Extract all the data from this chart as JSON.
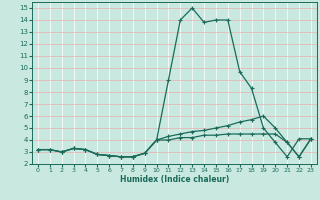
{
  "xlabel": "Humidex (Indice chaleur)",
  "bg_color": "#c8e8e0",
  "line_color": "#1a6b5a",
  "pink_grid": "#e8b0b0",
  "white_grid": "#ffffff",
  "xlim": [
    -0.5,
    23.5
  ],
  "ylim": [
    2,
    15.5
  ],
  "xticks": [
    0,
    1,
    2,
    3,
    4,
    5,
    6,
    7,
    8,
    9,
    10,
    11,
    12,
    13,
    14,
    15,
    16,
    17,
    18,
    19,
    20,
    21,
    22,
    23
  ],
  "yticks": [
    2,
    3,
    4,
    5,
    6,
    7,
    8,
    9,
    10,
    11,
    12,
    13,
    14,
    15
  ],
  "line1_x": [
    0,
    1,
    2,
    3,
    4,
    5,
    6,
    7,
    8,
    9,
    10,
    11,
    12,
    13,
    14,
    15,
    16,
    17,
    18,
    19,
    20,
    21,
    22,
    23
  ],
  "line1_y": [
    3.2,
    3.2,
    3.0,
    3.3,
    3.2,
    2.8,
    2.7,
    2.6,
    2.6,
    2.9,
    4.0,
    9.0,
    14.0,
    15.0,
    13.8,
    14.0,
    14.0,
    9.7,
    8.3,
    5.0,
    3.8,
    2.6,
    4.1,
    4.1
  ],
  "line2_x": [
    0,
    1,
    2,
    3,
    4,
    5,
    6,
    7,
    8,
    9,
    10,
    11,
    12,
    13,
    14,
    15,
    16,
    17,
    18,
    19,
    20,
    21,
    22,
    23
  ],
  "line2_y": [
    3.2,
    3.2,
    3.0,
    3.3,
    3.2,
    2.8,
    2.7,
    2.6,
    2.6,
    2.9,
    4.0,
    4.3,
    4.5,
    4.7,
    4.8,
    5.0,
    5.2,
    5.5,
    5.7,
    6.0,
    5.0,
    3.8,
    2.6,
    4.1
  ],
  "line3_x": [
    0,
    1,
    2,
    3,
    4,
    5,
    6,
    7,
    8,
    9,
    10,
    11,
    12,
    13,
    14,
    15,
    16,
    17,
    18,
    19,
    20,
    21,
    22,
    23
  ],
  "line3_y": [
    3.2,
    3.2,
    3.0,
    3.3,
    3.2,
    2.8,
    2.7,
    2.6,
    2.6,
    2.9,
    4.0,
    4.0,
    4.2,
    4.2,
    4.4,
    4.4,
    4.5,
    4.5,
    4.5,
    4.5,
    4.5,
    3.8,
    2.6,
    4.1
  ]
}
